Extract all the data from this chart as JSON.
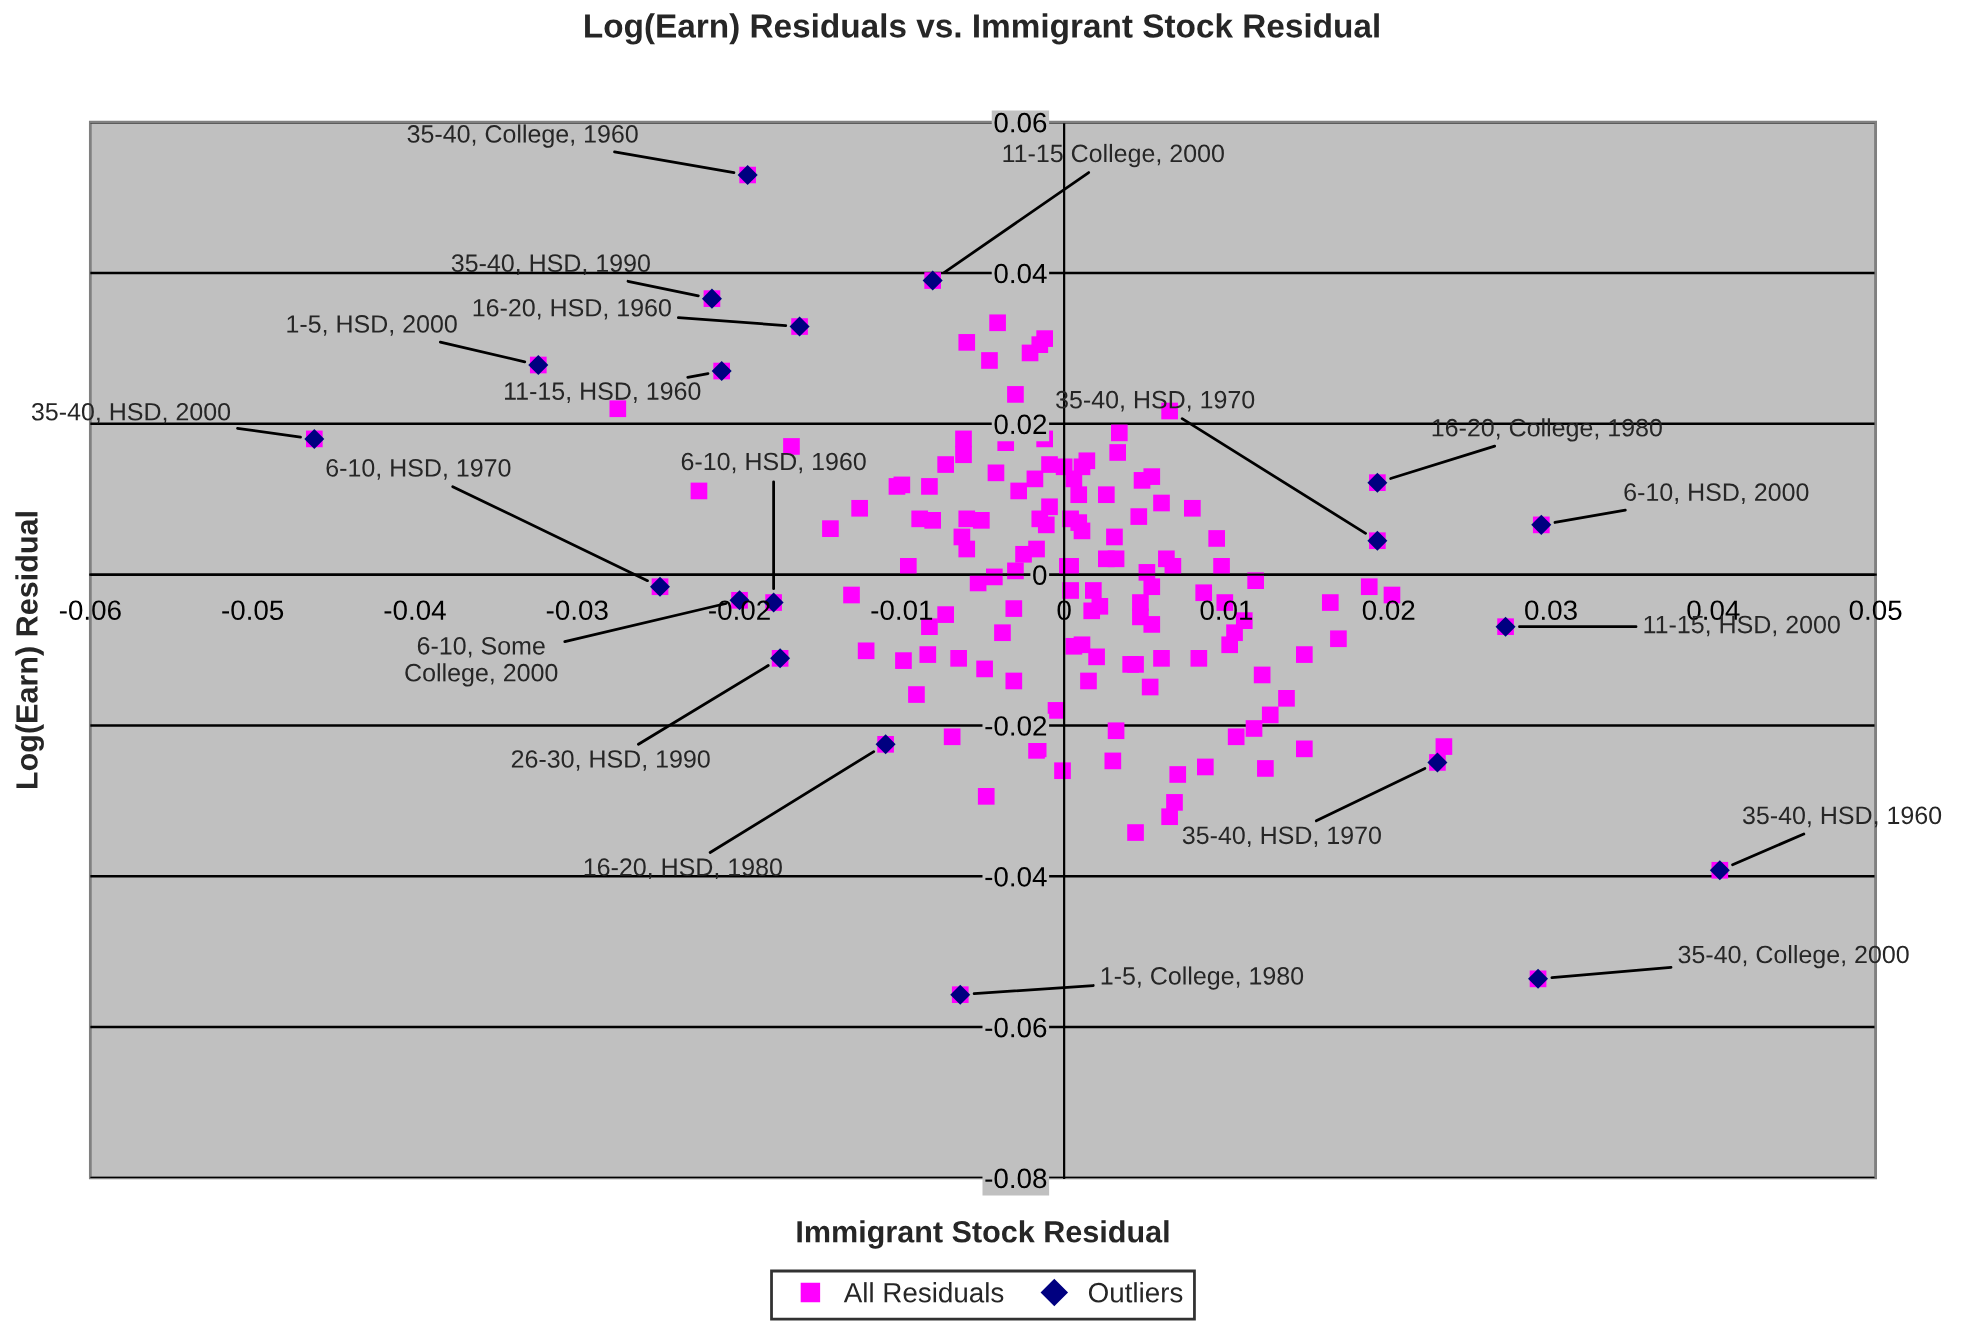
{
  "chart_data": {
    "type": "scatter",
    "title": "Log(Earn) Residuals vs. Immigrant Stock Residual",
    "xlabel": "Immigrant Stock Residual",
    "ylabel": "Log(Earn) Residual",
    "xlim": [
      -0.06,
      0.05
    ],
    "xticks": [
      -0.06,
      -0.05,
      -0.04,
      -0.03,
      -0.02,
      -0.01,
      0,
      0.01,
      0.02,
      0.03,
      0.04,
      0.05
    ],
    "ylim": [
      -0.08,
      0.06
    ],
    "yticks": [
      -0.08,
      -0.06,
      -0.04,
      -0.02,
      0,
      0.02,
      0.04,
      0.06
    ],
    "grid": "y",
    "legend": "bottom",
    "series": [
      {
        "name": "All Residuals",
        "color": "#ff00ff",
        "marker": "square",
        "x": [
          -0.0041,
          -0.006,
          -0.0012,
          -0.0015,
          -0.0021,
          -0.0046,
          -0.003,
          -0.0168,
          -0.0062,
          -0.0036,
          -0.0012,
          -0.0225,
          -0.0062,
          -0.0073,
          -0.0042,
          -0.0018,
          -0.0009,
          0.0,
          -0.01,
          -0.0083,
          -0.0028,
          -0.0009,
          -0.0126,
          -0.0089,
          -0.0081,
          -0.006,
          -0.0051,
          -0.0015,
          -0.0011,
          -0.0144,
          -0.0063,
          -0.006,
          -0.0025,
          -0.0017,
          -0.0096,
          -0.0053,
          -0.0043,
          -0.003,
          0.0004,
          -0.0131,
          0.0004,
          -0.0275,
          -0.0122,
          -0.0103,
          -0.0073,
          -0.0083,
          -0.0031,
          -0.0038,
          -0.0099,
          -0.0084,
          -0.0065,
          -0.0049,
          -0.0031,
          -0.0091,
          -0.0005,
          -0.0069,
          -0.0016,
          -0.0001,
          -0.0048,
          0.0006,
          0.0011,
          0.002,
          0.0015,
          0.0018,
          0.0022,
          0.0017,
          0.0032,
          0.003,
          0.0054,
          0.0086,
          0.0047,
          0.0047,
          0.0054,
          0.0118,
          0.0099,
          0.0111,
          0.0105,
          0.0102,
          0.0164,
          0.0188,
          0.0202,
          0.0169,
          0.0041,
          0.0044,
          0.006,
          0.0083,
          0.0053,
          0.0122,
          0.0148,
          0.0137,
          0.0127,
          0.0117,
          0.0106,
          0.007,
          0.0087,
          0.0124,
          0.0148,
          0.0068,
          0.0065,
          0.0044,
          0.0234,
          -0.0017,
          0.0065,
          0.0034,
          0.0033,
          0.0014,
          0.0011,
          0.0006,
          0.0026,
          0.0054,
          0.0048,
          0.0009,
          0.006,
          0.0079,
          0.0046,
          0.0004,
          0.0009,
          0.0011,
          0.0031,
          0.0094,
          0.0026,
          0.0032,
          0.0063,
          0.0067,
          0.0097,
          0.0051,
          0.0002,
          -0.0195,
          -0.0081,
          -0.0217,
          -0.0163,
          -0.0324,
          -0.0211,
          -0.0462,
          0.0193,
          0.0193,
          0.0294,
          -0.0249,
          -0.02,
          -0.0179,
          -0.0175,
          -0.011,
          0.0272,
          0.023,
          0.0404,
          0.0292,
          -0.0064
        ],
        "values": [
          0.0334,
          0.0308,
          0.0313,
          0.0305,
          0.0294,
          0.0284,
          0.0239,
          0.017,
          0.018,
          0.0175,
          0.018,
          0.0111,
          0.0159,
          0.0146,
          0.0135,
          0.0127,
          0.0146,
          0.0143,
          0.0119,
          0.0117,
          0.0111,
          0.009,
          0.0088,
          0.0074,
          0.0072,
          0.0074,
          0.0072,
          0.0074,
          0.0066,
          0.0061,
          0.005,
          0.0034,
          0.0027,
          0.0034,
          0.0011,
          -0.0011,
          -0.0003,
          0.0005,
          0.0011,
          -0.0027,
          -0.0021,
          0.022,
          -0.0101,
          0.0117,
          -0.0053,
          -0.0069,
          -0.0045,
          -0.0077,
          -0.0114,
          -0.0106,
          -0.0111,
          -0.0125,
          -0.0141,
          -0.0159,
          -0.018,
          -0.0215,
          -0.0231,
          -0.026,
          -0.0294,
          -0.0095,
          -0.0093,
          -0.0109,
          -0.0141,
          -0.0021,
          -0.0042,
          -0.0048,
          -0.0207,
          -0.0247,
          -0.0016,
          -0.0024,
          -0.0037,
          -0.0056,
          -0.0066,
          -0.0008,
          -0.0037,
          -0.0061,
          -0.0077,
          -0.0093,
          -0.0037,
          -0.0016,
          -0.0027,
          -0.0085,
          -0.0119,
          -0.0119,
          -0.0111,
          -0.0111,
          -0.0149,
          -0.0133,
          -0.0106,
          -0.0164,
          -0.0186,
          -0.0204,
          -0.0215,
          -0.0265,
          -0.0255,
          -0.0257,
          -0.0231,
          -0.0302,
          -0.0321,
          -0.0342,
          -0.0228,
          -0.0233,
          0.0217,
          0.0188,
          0.0162,
          0.0151,
          0.0143,
          0.0127,
          0.0106,
          0.013,
          0.0125,
          0.0106,
          0.0095,
          0.0088,
          0.0077,
          0.0074,
          0.0069,
          0.0058,
          0.005,
          0.0048,
          0.0021,
          0.0021,
          0.0021,
          0.0011,
          0.0011,
          0.0003,
          0.0011,
          0.053,
          0.039,
          0.0366,
          0.0329,
          0.0278,
          0.027,
          0.018,
          0.0122,
          0.0045,
          0.0066,
          -0.0016,
          -0.0034,
          -0.0037,
          -0.0111,
          -0.0225,
          -0.0069,
          -0.0249,
          -0.0392,
          -0.0536,
          -0.0557
        ]
      },
      {
        "name": "Outliers",
        "color": "#000080",
        "marker": "diamond",
        "x": [
          -0.0195,
          -0.0081,
          -0.0217,
          -0.0163,
          -0.0324,
          -0.0211,
          -0.0462,
          0.0193,
          0.0193,
          0.0294,
          -0.0249,
          -0.02,
          -0.0179,
          -0.0175,
          -0.011,
          0.0272,
          0.023,
          0.0404,
          0.0292,
          -0.0064
        ],
        "values": [
          0.053,
          0.039,
          0.0366,
          0.0329,
          0.0278,
          0.027,
          0.018,
          0.0122,
          0.0045,
          0.0066,
          -0.0016,
          -0.0034,
          -0.0037,
          -0.0111,
          -0.0225,
          -0.0069,
          -0.0249,
          -0.0392,
          -0.0536,
          -0.0557
        ]
      }
    ],
    "annotations": [
      {
        "text": "35-40, College, 1960",
        "x": -0.0195,
        "y": 0.053
      },
      {
        "text": "11-15 College, 2000",
        "x": -0.0081,
        "y": 0.039
      },
      {
        "text": "35-40, HSD, 1990",
        "x": -0.0217,
        "y": 0.0366
      },
      {
        "text": "16-20, HSD, 1960",
        "x": -0.0163,
        "y": 0.0329
      },
      {
        "text": "1-5, HSD, 2000",
        "x": -0.0324,
        "y": 0.0278
      },
      {
        "text": "11-15, HSD, 1960",
        "x": -0.0211,
        "y": 0.027
      },
      {
        "text": "35-40, HSD, 2000",
        "x": -0.0462,
        "y": 0.018
      },
      {
        "text": "16-20, College, 1980",
        "x": 0.0193,
        "y": 0.0122
      },
      {
        "text": "35-40, HSD, 1970",
        "x": 0.0193,
        "y": 0.0045
      },
      {
        "text": "6-10, HSD, 2000",
        "x": 0.0294,
        "y": 0.0066
      },
      {
        "text": "6-10, HSD, 1970",
        "x": -0.0249,
        "y": -0.0016
      },
      {
        "text": "6-10, Some\nCollege, 2000",
        "x": -0.02,
        "y": -0.0034
      },
      {
        "text": "6-10, HSD, 1960",
        "x": -0.0179,
        "y": -0.0037
      },
      {
        "text": "26-30, HSD, 1990",
        "x": -0.0175,
        "y": -0.0111
      },
      {
        "text": "16-20, HSD, 1980",
        "x": -0.011,
        "y": -0.0225
      },
      {
        "text": "11-15, HSD, 2000",
        "x": 0.0272,
        "y": -0.0069
      },
      {
        "text": "35-40, HSD, 1970",
        "x": 0.023,
        "y": -0.0249
      },
      {
        "text": "35-40, HSD, 1960",
        "x": 0.0404,
        "y": -0.0392
      },
      {
        "text": "35-40, College, 2000",
        "x": 0.0292,
        "y": -0.0536
      },
      {
        "text": "1-5, College, 1980",
        "x": -0.0064,
        "y": -0.0557
      }
    ]
  }
}
